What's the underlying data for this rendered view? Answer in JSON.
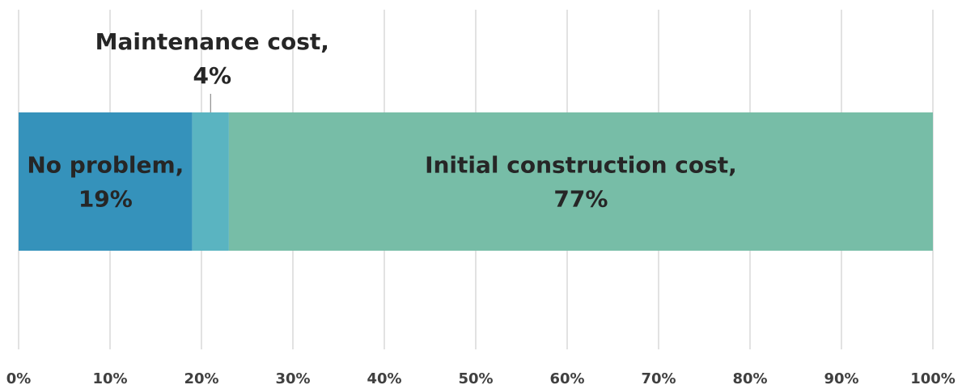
{
  "chart_data": {
    "type": "bar",
    "orientation": "horizontal",
    "stacked": true,
    "categories": [
      ""
    ],
    "series": [
      {
        "name": "No problem",
        "values": [
          19
        ],
        "color": "#3592bb",
        "label_lines": [
          "No problem,",
          "19%"
        ],
        "label_position": "inside"
      },
      {
        "name": "Maintenance cost",
        "values": [
          4
        ],
        "color": "#5ab4c1",
        "label_lines": [
          "Maintenance cost,",
          "4%"
        ],
        "label_position": "callout-above"
      },
      {
        "name": "Initial construction cost",
        "values": [
          77
        ],
        "color": "#77bda7",
        "label_lines": [
          "Initial construction cost,",
          "77%"
        ],
        "label_position": "inside"
      }
    ],
    "xlim": [
      0,
      100
    ],
    "x_unit": "%",
    "xticks": [
      "0%",
      "10%",
      "20%",
      "30%",
      "40%",
      "50%",
      "60%",
      "70%",
      "80%",
      "90%",
      "100%"
    ],
    "xtick_values": [
      0,
      10,
      20,
      30,
      40,
      50,
      60,
      70,
      80,
      90,
      100
    ],
    "grid": true,
    "grid_color": "#d9d9d9",
    "legend": "none",
    "title": "",
    "xlabel": "",
    "ylabel": ""
  }
}
